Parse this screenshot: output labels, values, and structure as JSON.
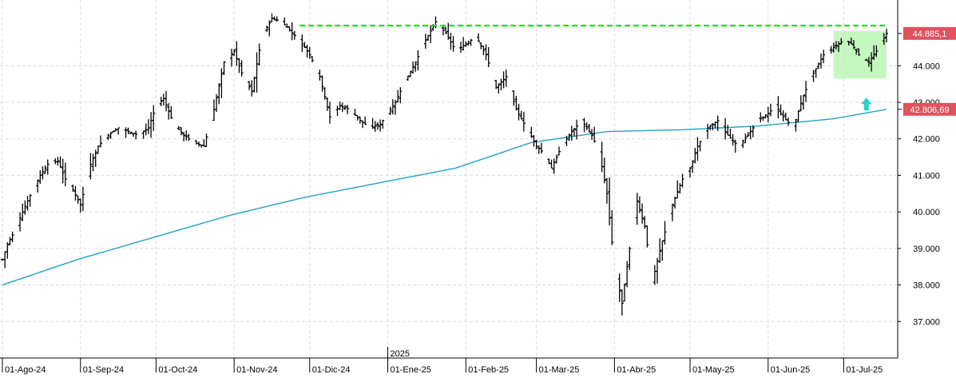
{
  "chart_data": {
    "type": "line",
    "title": "",
    "xlabel": "",
    "ylabel": "",
    "ylim": [
      36000,
      45800
    ],
    "y_ticks": [
      "37.000",
      "38.000",
      "39.000",
      "40.000",
      "41.000",
      "42.000",
      "43.000",
      "44.000"
    ],
    "y_tick_values": [
      37000,
      38000,
      39000,
      40000,
      41000,
      42000,
      43000,
      44000
    ],
    "x_tick_labels": [
      "01-Ago-24",
      "01-Sep-24",
      "01-Oct-24",
      "01-Nov-24",
      "01-Dic-24",
      "01-Ene-25",
      "01-Feb-25",
      "01-Mar-25",
      "01-Abr-25",
      "01-May-25",
      "01-Jun-25",
      "01-Jul-25"
    ],
    "x_tick_days": [
      0,
      31,
      61,
      92,
      122,
      153,
      184,
      212,
      243,
      273,
      304,
      334
    ],
    "year_marker": {
      "label": "2025",
      "day": 153
    },
    "x_range_days": [
      0,
      351
    ],
    "price_series_days": [
      0,
      2,
      5,
      8,
      12,
      15,
      18,
      22,
      25,
      28,
      31,
      35,
      38,
      42,
      46,
      50,
      54,
      58,
      61,
      64,
      68,
      72,
      76,
      80,
      84,
      88,
      92,
      95,
      99,
      103,
      107,
      111,
      115,
      119,
      122,
      126,
      130,
      134,
      138,
      142,
      146,
      150,
      153,
      156,
      160,
      164,
      168,
      172,
      176,
      180,
      184,
      188,
      192,
      196,
      200,
      204,
      208,
      212,
      215,
      218,
      222,
      226,
      230,
      234,
      237,
      240,
      243,
      246,
      249,
      252,
      255,
      258,
      262,
      266,
      270,
      273,
      276,
      280,
      284,
      288,
      292,
      296,
      300,
      304,
      307,
      310,
      314,
      318,
      322,
      326,
      330,
      334,
      337,
      340,
      344,
      348,
      351
    ],
    "price_series_values": [
      38700,
      39100,
      39500,
      40000,
      40600,
      41000,
      41300,
      41400,
      40900,
      40600,
      40200,
      41300,
      41800,
      42100,
      42300,
      42200,
      42100,
      42300,
      42900,
      43100,
      42400,
      42100,
      41900,
      41800,
      42800,
      44100,
      44400,
      43800,
      43300,
      44800,
      45300,
      45200,
      44900,
      44600,
      44300,
      43700,
      42600,
      42900,
      42800,
      42500,
      42300,
      42400,
      42700,
      43000,
      43600,
      44100,
      44700,
      45200,
      44900,
      44400,
      44600,
      44800,
      44300,
      43400,
      43700,
      42800,
      42300,
      41800,
      41600,
      41200,
      41800,
      42200,
      42500,
      42100,
      41600,
      40500,
      38500,
      37500,
      39000,
      40300,
      39600,
      38100,
      39200,
      40200,
      40900,
      41200,
      41800,
      42300,
      42500,
      42100,
      41800,
      42100,
      42500,
      42700,
      42900,
      42600,
      42300,
      43200,
      43800,
      44300,
      44500,
      44700,
      44600,
      44300,
      44100,
      44500,
      44885
    ],
    "moving_average_days": [
      0,
      30,
      60,
      90,
      120,
      150,
      180,
      210,
      240,
      270,
      300,
      330,
      351
    ],
    "moving_average_values": [
      38000,
      38700,
      39300,
      39900,
      40400,
      40800,
      41200,
      41900,
      42200,
      42250,
      42350,
      42550,
      42807
    ],
    "resistance_level": 45100,
    "resistance_start_day": 118,
    "last_price_label": "44.885,1",
    "moving_average_label": "42.806,69",
    "highlight_box": {
      "day_start": 330,
      "day_end": 351,
      "low": 43650,
      "high": 44950
    },
    "arrow_marker": {
      "day": 343,
      "value": 42950
    },
    "colors": {
      "price": "#000000",
      "moving_average": "#1fa3c8",
      "resistance": "#22dd22",
      "highlight": "#b8f5b0",
      "label_bg": "#e0525e",
      "arrow": "#27d6c4",
      "grid": "#dcdcdc"
    }
  }
}
